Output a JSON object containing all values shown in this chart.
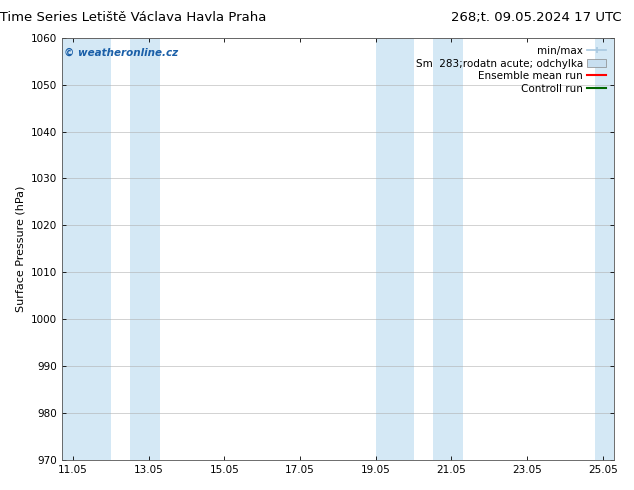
{
  "title_left": "ENS Time Series Letiště Václava Havla Praha",
  "title_right": "268;t. 09.05.2024 17 UTC",
  "ylabel": "Surface Pressure (hPa)",
  "ylim": [
    970,
    1060
  ],
  "yticks": [
    970,
    980,
    990,
    1000,
    1010,
    1020,
    1030,
    1040,
    1050,
    1060
  ],
  "xlim_start": 10.7,
  "xlim_end": 25.3,
  "xtick_labels": [
    "11.05",
    "13.05",
    "15.05",
    "17.05",
    "19.05",
    "21.05",
    "23.05",
    "25.05"
  ],
  "xtick_positions": [
    11,
    13,
    15,
    17,
    19,
    21,
    23,
    25
  ],
  "shaded_bands": [
    {
      "x_start": 10.7,
      "x_end": 12.0
    },
    {
      "x_start": 12.5,
      "x_end": 13.3
    },
    {
      "x_start": 19.0,
      "x_end": 20.0
    },
    {
      "x_start": 20.5,
      "x_end": 21.3
    },
    {
      "x_start": 24.8,
      "x_end": 25.3
    }
  ],
  "band_color": "#d4e8f5",
  "bg_color": "#ffffff",
  "plot_bg_color": "#ffffff",
  "grid_color": "#b0b0b0",
  "watermark_text": "© weatheronline.cz",
  "watermark_color": "#1a5fa8",
  "legend_labels": [
    "min/max",
    "Sm  283;rodatn acute; odchylka",
    "Ensemble mean run",
    "Controll run"
  ],
  "legend_handle_colors": [
    "#a8c8e0",
    "#c8dff0",
    "#ff0000",
    "#006600"
  ],
  "title_fontsize": 9.5,
  "axis_label_fontsize": 8,
  "tick_fontsize": 7.5,
  "legend_fontsize": 7.5
}
